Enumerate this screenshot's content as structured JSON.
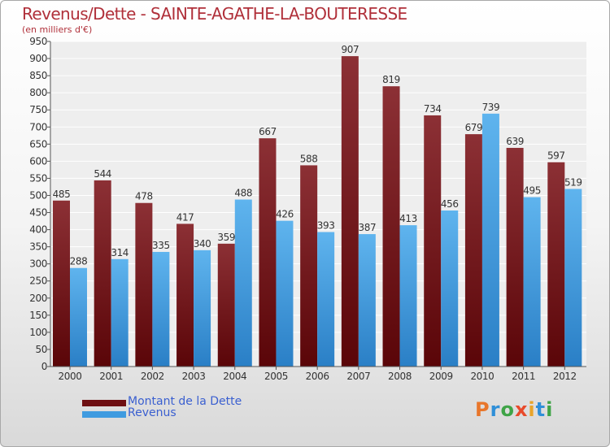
{
  "header": {
    "title": "Revenus/Dette - SAINTE-AGATHE-LA-BOUTERESSE",
    "subtitle": "(en milliers d'€)"
  },
  "legend": [
    {
      "label": "Montant de la Dette",
      "color": "#6e0f12"
    },
    {
      "label": "Revenus",
      "color": "#3f9be0"
    }
  ],
  "logo": {
    "text": "Proxiti"
  },
  "chart_data": {
    "type": "bar",
    "title": "Revenus/Dette - SAINTE-AGATHE-LA-BOUTERESSE",
    "subtitle": "(en milliers d'€)",
    "xlabel": "",
    "ylabel": "",
    "categories": [
      "2000",
      "2001",
      "2002",
      "2003",
      "2004",
      "2005",
      "2006",
      "2007",
      "2008",
      "2009",
      "2010",
      "2011",
      "2012"
    ],
    "series": [
      {
        "name": "Montant de la Dette",
        "color": "#7a1f24",
        "values": [
          485,
          544,
          478,
          417,
          359,
          667,
          588,
          907,
          819,
          734,
          679,
          639,
          597
        ]
      },
      {
        "name": "Revenus",
        "color": "#4aa6e8",
        "values": [
          288,
          314,
          335,
          340,
          488,
          426,
          393,
          387,
          413,
          456,
          739,
          495,
          519
        ]
      }
    ],
    "ylim": [
      0,
      950
    ],
    "ytick_step": 50,
    "grid": "horizontal",
    "legend_position": "bottom-left"
  }
}
